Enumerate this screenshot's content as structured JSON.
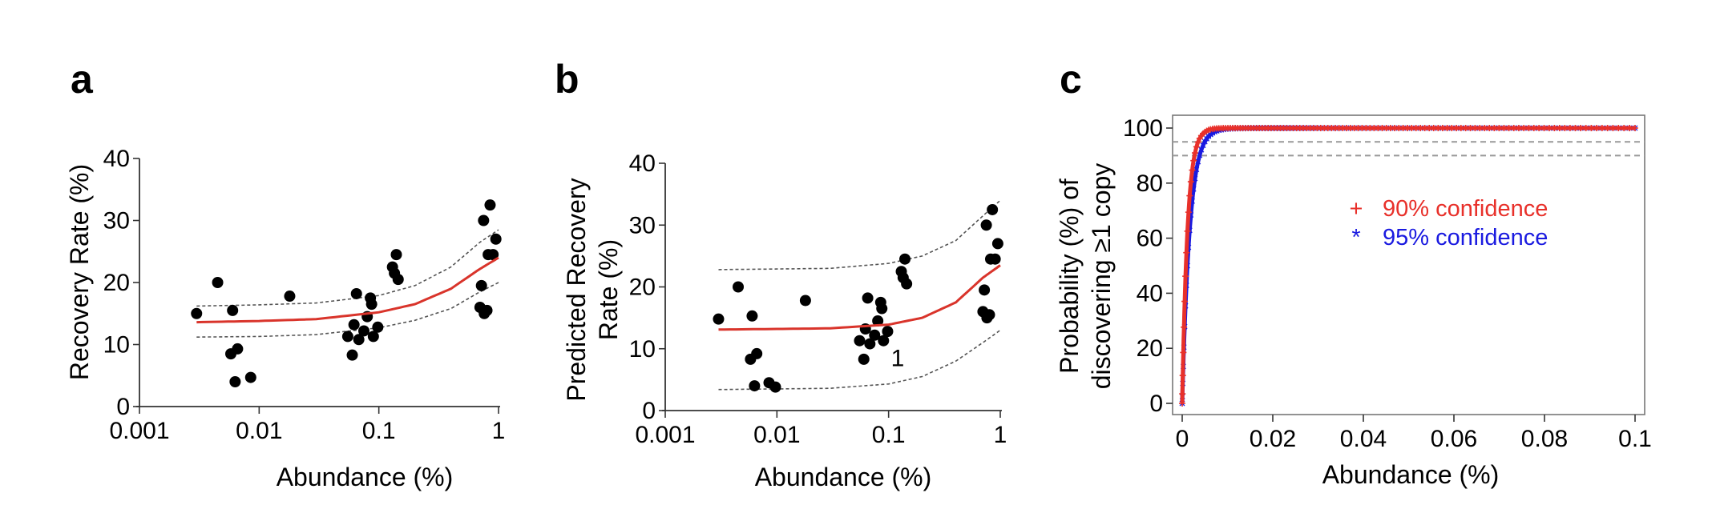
{
  "colors": {
    "fit": "#d9342b",
    "ci": "#555555",
    "points": "#000000",
    "conf90": "#e8302a",
    "conf95": "#1a1ae0",
    "ref": "#999999"
  },
  "chart_data": [
    {
      "panel": "a",
      "type": "scatter",
      "xscale": "log",
      "xlim": [
        0.001,
        1
      ],
      "ylim": [
        0,
        40
      ],
      "xticks": [
        0.001,
        0.01,
        0.1,
        1
      ],
      "xtick_labels": [
        "0.001",
        "0.01",
        "0.1",
        "1"
      ],
      "yticks": [
        0,
        10,
        20,
        30,
        40
      ],
      "ytick_labels": [
        "0",
        "10",
        "20",
        "30",
        "40"
      ],
      "xlabel": "Abundance (%)",
      "ylabel": [
        "Recovery Rate (%)"
      ],
      "points": [
        [
          0.003,
          15
        ],
        [
          0.0045,
          20
        ],
        [
          0.006,
          15.5
        ],
        [
          0.0058,
          8.5
        ],
        [
          0.0066,
          9.3
        ],
        [
          0.0063,
          4
        ],
        [
          0.0085,
          4.7
        ],
        [
          0.018,
          17.8
        ],
        [
          0.055,
          11.3
        ],
        [
          0.06,
          8.3
        ],
        [
          0.065,
          18.2
        ],
        [
          0.068,
          10.8
        ],
        [
          0.062,
          13.2
        ],
        [
          0.075,
          12.2
        ],
        [
          0.08,
          14.5
        ],
        [
          0.085,
          17.5
        ],
        [
          0.087,
          16.5
        ],
        [
          0.09,
          11.3
        ],
        [
          0.098,
          12.8
        ],
        [
          0.13,
          22.5
        ],
        [
          0.135,
          21.5
        ],
        [
          0.14,
          24.5
        ],
        [
          0.145,
          20.5
        ],
        [
          0.7,
          16
        ],
        [
          0.72,
          19.5
        ],
        [
          0.75,
          30
        ],
        [
          0.76,
          15
        ],
        [
          0.8,
          15.5
        ],
        [
          0.82,
          24.5
        ],
        [
          0.85,
          32.5
        ],
        [
          0.9,
          24.5
        ],
        [
          0.95,
          27
        ]
      ],
      "fit": [
        [
          0.003,
          13.6
        ],
        [
          0.01,
          13.8
        ],
        [
          0.03,
          14.1
        ],
        [
          0.1,
          15.2
        ],
        [
          0.2,
          16.5
        ],
        [
          0.4,
          19
        ],
        [
          0.7,
          22.2
        ],
        [
          1,
          24
        ]
      ],
      "ci_upper": [
        [
          0.003,
          16.2
        ],
        [
          0.01,
          16.4
        ],
        [
          0.03,
          16.7
        ],
        [
          0.1,
          17.9
        ],
        [
          0.2,
          19.5
        ],
        [
          0.4,
          22.5
        ],
        [
          0.7,
          26.5
        ],
        [
          1,
          28.5
        ]
      ],
      "ci_lower": [
        [
          0.003,
          11.2
        ],
        [
          0.01,
          11.3
        ],
        [
          0.03,
          11.6
        ],
        [
          0.1,
          12.7
        ],
        [
          0.2,
          13.9
        ],
        [
          0.4,
          15.8
        ],
        [
          0.7,
          18.5
        ],
        [
          1,
          20
        ]
      ],
      "annotations": []
    },
    {
      "panel": "b",
      "type": "scatter",
      "xscale": "log",
      "xlim": [
        0.001,
        1
      ],
      "ylim": [
        0,
        40
      ],
      "xticks": [
        0.001,
        0.01,
        0.1,
        1
      ],
      "xtick_labels": [
        "0.001",
        "0.01",
        "0.1",
        "1"
      ],
      "yticks": [
        0,
        10,
        20,
        30,
        40
      ],
      "ytick_labels": [
        "0",
        "10",
        "20",
        "30",
        "40"
      ],
      "xlabel": "Abundance (%)",
      "ylabel": [
        "Predicted Recovery",
        "Rate (%)"
      ],
      "points": [
        [
          0.003,
          14.8
        ],
        [
          0.0045,
          20
        ],
        [
          0.006,
          15.3
        ],
        [
          0.0058,
          8.3
        ],
        [
          0.0066,
          9.2
        ],
        [
          0.0063,
          4
        ],
        [
          0.0085,
          4.5
        ],
        [
          0.0097,
          3.8
        ],
        [
          0.018,
          17.8
        ],
        [
          0.055,
          11.3
        ],
        [
          0.06,
          8.3
        ],
        [
          0.065,
          18.2
        ],
        [
          0.068,
          10.8
        ],
        [
          0.062,
          13.2
        ],
        [
          0.075,
          12.2
        ],
        [
          0.08,
          14.5
        ],
        [
          0.085,
          17.5
        ],
        [
          0.087,
          16.5
        ],
        [
          0.09,
          11.3
        ],
        [
          0.098,
          12.8
        ],
        [
          0.13,
          22.5
        ],
        [
          0.135,
          21.5
        ],
        [
          0.14,
          24.5
        ],
        [
          0.145,
          20.5
        ],
        [
          0.7,
          16
        ],
        [
          0.72,
          19.5
        ],
        [
          0.75,
          30
        ],
        [
          0.76,
          15
        ],
        [
          0.8,
          15.5
        ],
        [
          0.82,
          24.5
        ],
        [
          0.85,
          32.5
        ],
        [
          0.9,
          24.5
        ],
        [
          0.95,
          27
        ]
      ],
      "fit": [
        [
          0.003,
          13.1
        ],
        [
          0.01,
          13.2
        ],
        [
          0.03,
          13.3
        ],
        [
          0.1,
          13.9
        ],
        [
          0.2,
          15
        ],
        [
          0.4,
          17.5
        ],
        [
          0.7,
          21.5
        ],
        [
          1,
          23.5
        ]
      ],
      "ci_upper": [
        [
          0.003,
          22.8
        ],
        [
          0.01,
          22.9
        ],
        [
          0.03,
          23
        ],
        [
          0.1,
          23.8
        ],
        [
          0.2,
          25
        ],
        [
          0.4,
          27.5
        ],
        [
          0.7,
          31.5
        ],
        [
          1,
          34
        ]
      ],
      "ci_lower": [
        [
          0.003,
          3.4
        ],
        [
          0.01,
          3.5
        ],
        [
          0.03,
          3.6
        ],
        [
          0.1,
          4.3
        ],
        [
          0.2,
          5.5
        ],
        [
          0.4,
          8
        ],
        [
          0.7,
          11
        ],
        [
          1,
          13
        ]
      ],
      "annotations": [
        {
          "text": "1",
          "x": 0.105,
          "y": 8.5
        }
      ]
    },
    {
      "panel": "c",
      "type": "line",
      "xscale": "linear",
      "xlim": [
        0,
        0.1
      ],
      "ylim": [
        0,
        100
      ],
      "xticks": [
        0,
        0.02,
        0.04,
        0.06,
        0.08,
        0.1
      ],
      "xtick_labels": [
        "0",
        "0.02",
        "0.04",
        "0.06",
        "0.08",
        "0.1"
      ],
      "yticks": [
        0,
        20,
        40,
        60,
        80,
        100
      ],
      "ytick_labels": [
        "0",
        "20",
        "40",
        "60",
        "80",
        "100"
      ],
      "xlabel": "Abundance (%)",
      "ylabel": [
        "Probability (%) of",
        "discovering ≥1 copy"
      ],
      "reference_lines": [
        95,
        90
      ],
      "series": [
        {
          "name": "90% confidence",
          "marker": "+",
          "color_key": "conf90",
          "k": 0.85
        },
        {
          "name": "95% confidence",
          "marker": "*",
          "color_key": "conf95",
          "k": 0.6
        }
      ],
      "legend": [
        {
          "marker": "+",
          "label": "90% confidence"
        },
        {
          "marker": "*",
          "label": "95% confidence"
        }
      ]
    }
  ]
}
